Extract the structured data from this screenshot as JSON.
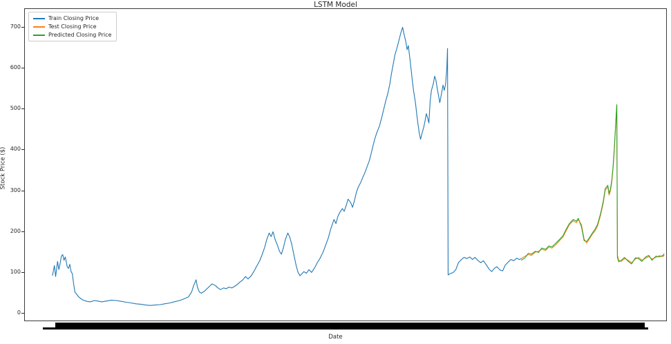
{
  "figure": {
    "title": "LSTM Model",
    "xlabel": "Date",
    "ylabel": "Stock Price ($)",
    "background": "#ffffff"
  },
  "chart_data": {
    "type": "line",
    "title": "LSTM Model",
    "xlabel": "Date",
    "ylabel": "Stock Price ($)",
    "xlim": [
      0,
      1000
    ],
    "ylim": [
      -20,
      745
    ],
    "yticks": [
      0,
      100,
      200,
      300,
      400,
      500,
      600,
      700
    ],
    "grid": false,
    "legend_position": "upper left",
    "xticks_note": "date tick labels overlap into a solid black band below the axis",
    "series": [
      {
        "name": "Train Closing Price",
        "color": "#1f77b4",
        "x": [
          43,
          46,
          48,
          51,
          53,
          55,
          57,
          59,
          61,
          63,
          66,
          68,
          70,
          72,
          74,
          76,
          78,
          81,
          84,
          87,
          91,
          97,
          102,
          108,
          113,
          120,
          128,
          135,
          143,
          151,
          158,
          166,
          173,
          181,
          188,
          196,
          203,
          211,
          218,
          226,
          233,
          241,
          248,
          255,
          260,
          263,
          267,
          269,
          272,
          275,
          280,
          284,
          288,
          292,
          297,
          301,
          305,
          310,
          314,
          318,
          323,
          327,
          331,
          335,
          340,
          344,
          348,
          353,
          357,
          361,
          366,
          370,
          374,
          377,
          381,
          384,
          387,
          390,
          394,
          397,
          400,
          403,
          406,
          410,
          413,
          416,
          419,
          423,
          426,
          429,
          432,
          435,
          439,
          443,
          447,
          452,
          456,
          460,
          465,
          469,
          473,
          477,
          482,
          485,
          488,
          491,
          495,
          498,
          501,
          504,
          508,
          511,
          514,
          517,
          520,
          524,
          527,
          530,
          533,
          537,
          540,
          543,
          546,
          549,
          553,
          556,
          559,
          562,
          566,
          569,
          571,
          573,
          575,
          577,
          580,
          582,
          584,
          586,
          589,
          591,
          594,
          596,
          598,
          600,
          602,
          604,
          606,
          609,
          611,
          613,
          615,
          617,
          619,
          622,
          624,
          626,
          628,
          630,
          632,
          634,
          637,
          639,
          641,
          643,
          645,
          647,
          650,
          652,
          654,
          656,
          658,
          659,
          660,
          663,
          668,
          672,
          676,
          681,
          685,
          689,
          694,
          698,
          702,
          706,
          711,
          715,
          719,
          724,
          728,
          732,
          736,
          741,
          745,
          749,
          754,
          758,
          762,
          767,
          771,
          774
        ],
        "y": [
          90,
          115,
          88,
          125,
          105,
          120,
          138,
          142,
          128,
          136,
          112,
          108,
          118,
          100,
          95,
          70,
          50,
          44,
          38,
          34,
          30,
          27,
          26,
          29,
          28,
          26,
          28,
          30,
          29,
          27,
          25,
          23,
          21,
          20,
          18,
          17,
          18,
          19,
          21,
          23,
          26,
          29,
          33,
          38,
          50,
          65,
          80,
          62,
          50,
          47,
          52,
          58,
          64,
          70,
          66,
          60,
          56,
          60,
          58,
          62,
          60,
          64,
          68,
          74,
          80,
          88,
          82,
          90,
          100,
          112,
          126,
          142,
          160,
          178,
          195,
          186,
          198,
          180,
          164,
          150,
          143,
          158,
          178,
          195,
          185,
          168,
          145,
          115,
          98,
          90,
          95,
          100,
          96,
          105,
          98,
          110,
          122,
          132,
          148,
          165,
          182,
          205,
          228,
          218,
          235,
          245,
          255,
          248,
          262,
          278,
          270,
          258,
          275,
          295,
          308,
          320,
          332,
          342,
          355,
          372,
          390,
          410,
          428,
          442,
          458,
          476,
          495,
          515,
          538,
          560,
          580,
          598,
          615,
          632,
          648,
          660,
          672,
          685,
          700,
          685,
          665,
          645,
          655,
          628,
          600,
          572,
          545,
          515,
          488,
          462,
          440,
          425,
          438,
          455,
          470,
          488,
          478,
          465,
          520,
          545,
          562,
          580,
          570,
          550,
          532,
          515,
          540,
          558,
          545,
          560,
          600,
          648,
          92,
          95,
          98,
          105,
          122,
          130,
          135,
          132,
          136,
          130,
          135,
          128,
          122,
          127,
          118,
          106,
          100,
          108,
          112,
          104,
          102,
          116,
          124,
          130,
          127,
          133,
          130,
          132
        ]
      },
      {
        "name": "Test Closing Price",
        "color": "#ff7f0e",
        "x": [
          774,
          780,
          785,
          790,
          796,
          801,
          806,
          812,
          817,
          822,
          828,
          833,
          839,
          844,
          849,
          855,
          860,
          863,
          868,
          872,
          876,
          881,
          885,
          889,
          893,
          898,
          902,
          905,
          909,
          911,
          913,
          915,
          917,
          919,
          921,
          923,
          924,
          926,
          930,
          935,
          941,
          946,
          952,
          957,
          962,
          968,
          973,
          978,
          984,
          989,
          995,
          997
        ],
        "y": [
          132,
          138,
          142,
          140,
          148,
          150,
          155,
          152,
          160,
          158,
          166,
          175,
          185,
          200,
          215,
          225,
          220,
          228,
          215,
          180,
          170,
          182,
          192,
          200,
          212,
          240,
          270,
          300,
          308,
          288,
          298,
          318,
          350,
          395,
          450,
          510,
          140,
          128,
          125,
          132,
          128,
          122,
          131,
          135,
          128,
          133,
          137,
          131,
          135,
          139,
          137,
          141
        ]
      },
      {
        "name": "Predicted Closing Price",
        "color": "#2ca02c",
        "x": [
          774,
          780,
          785,
          790,
          796,
          801,
          806,
          812,
          817,
          822,
          828,
          833,
          839,
          844,
          849,
          855,
          860,
          863,
          868,
          872,
          876,
          881,
          885,
          889,
          893,
          898,
          902,
          905,
          909,
          911,
          913,
          915,
          917,
          919,
          921,
          923,
          924,
          926,
          930,
          935,
          941,
          946,
          952,
          957,
          962,
          968,
          973,
          978,
          984,
          989,
          995,
          997
        ],
        "y": [
          128,
          134,
          145,
          143,
          150,
          147,
          158,
          155,
          163,
          161,
          170,
          178,
          188,
          204,
          218,
          228,
          224,
          231,
          210,
          176,
          174,
          185,
          195,
          204,
          216,
          244,
          274,
          304,
          312,
          292,
          302,
          322,
          354,
          400,
          455,
          510,
          135,
          124,
          128,
          135,
          125,
          119,
          134,
          132,
          125,
          136,
          140,
          128,
          138,
          136,
          140,
          144
        ]
      }
    ]
  }
}
